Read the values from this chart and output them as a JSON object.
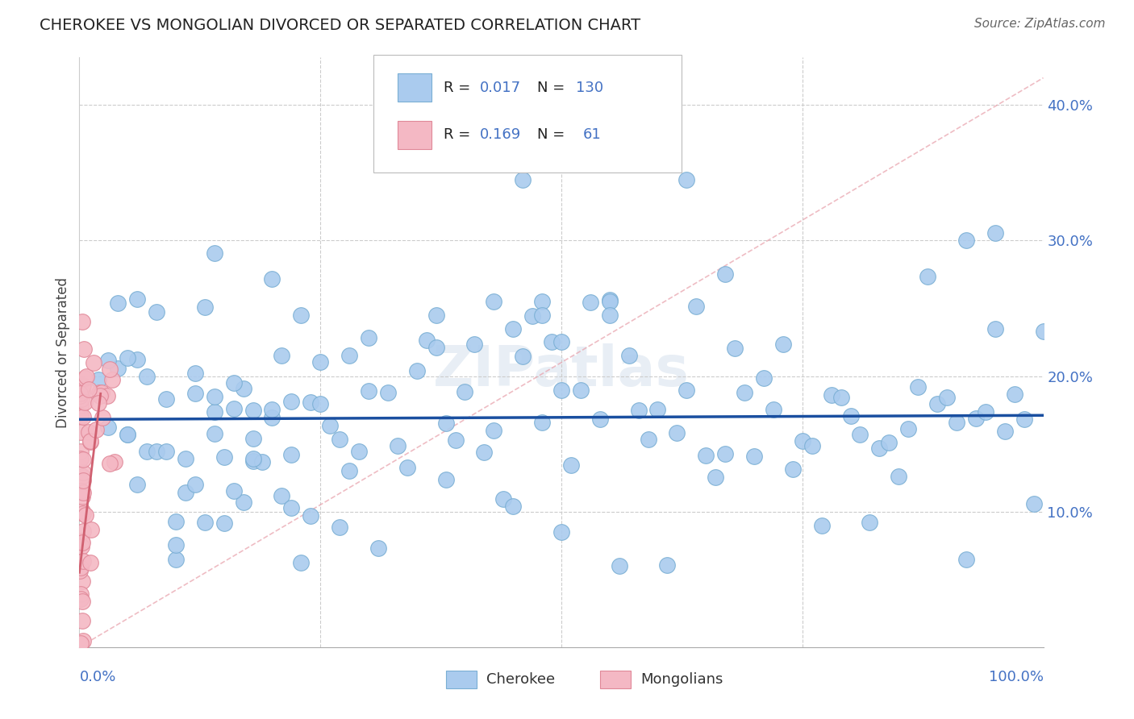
{
  "title": "CHEROKEE VS MONGOLIAN DIVORCED OR SEPARATED CORRELATION CHART",
  "source": "Source: ZipAtlas.com",
  "ylabel": "Divorced or Separated",
  "xlim": [
    0,
    1.0
  ],
  "ylim": [
    0,
    0.435
  ],
  "yticks": [
    0.1,
    0.2,
    0.3,
    0.4
  ],
  "ytick_labels": [
    "10.0%",
    "20.0%",
    "30.0%",
    "40.0%"
  ],
  "blue_color": "#aacbee",
  "blue_edge": "#7aafd4",
  "pink_color": "#f4b8c4",
  "pink_edge": "#e08898",
  "line_blue": "#1a4fa0",
  "line_pink": "#d06070",
  "diag_color": "#e8a0aa",
  "label_color": "#4472c4",
  "watermark": "ZIPatlas"
}
